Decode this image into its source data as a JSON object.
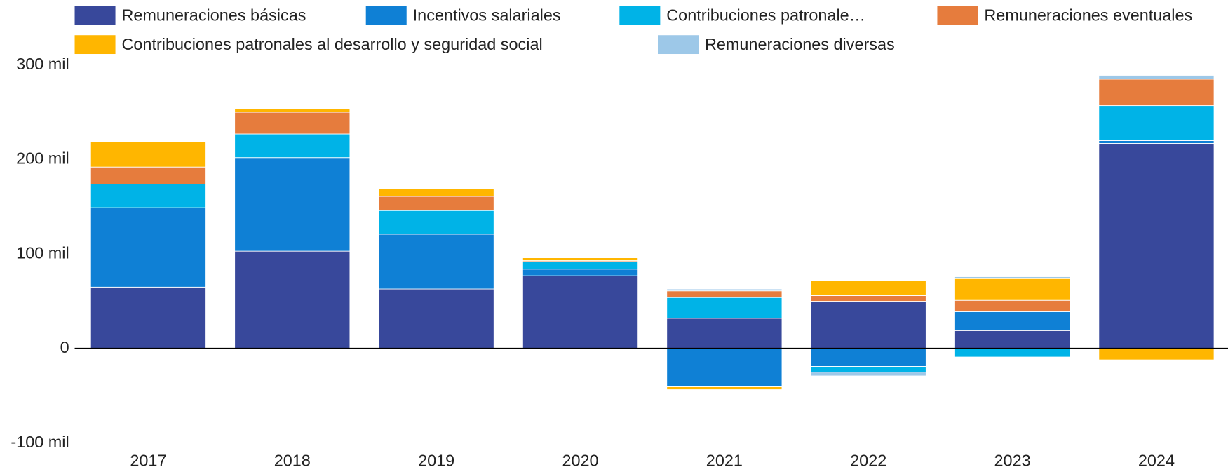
{
  "chart_data": {
    "type": "stacked_bar",
    "categories": [
      "2017",
      "2018",
      "2019",
      "2020",
      "2021",
      "2022",
      "2023",
      "2024"
    ],
    "series": [
      {
        "name": "Remuneraciones básicas",
        "color": "#38489b",
        "values": [
          65000,
          103000,
          63000,
          77000,
          32000,
          50000,
          19000,
          217000
        ]
      },
      {
        "name": "Incentivos salariales",
        "color": "#0f80d5",
        "values": [
          84000,
          99000,
          58000,
          7000,
          -40500,
          -19000,
          20000,
          3000
        ]
      },
      {
        "name": "Contribuciones patronale…",
        "color": "#00b3e7",
        "values": [
          25000,
          25000,
          25000,
          8000,
          22000,
          -6000,
          -9000,
          37000
        ]
      },
      {
        "name": "Remuneraciones eventuales",
        "color": "#e67c3d",
        "values": [
          18000,
          23000,
          15000,
          1000,
          7000,
          6000,
          12000,
          28000
        ]
      },
      {
        "name": "Contribuciones patronales al desarrollo y seguridad social",
        "color": "#ffb600",
        "values": [
          27000,
          4000,
          8000,
          3000,
          -3000,
          16000,
          23000,
          -12000
        ]
      },
      {
        "name": "Remuneraciones diversas",
        "color": "#9dc8e8",
        "values": [
          0,
          0,
          0,
          0,
          2000,
          -4000,
          2000,
          4000
        ]
      }
    ],
    "ylim": [
      -100000,
      300000
    ],
    "yticks": [
      {
        "value": -100000,
        "label": "-100 mil"
      },
      {
        "value": 0,
        "label": "0"
      },
      {
        "value": 100000,
        "label": "100 mil"
      },
      {
        "value": 200000,
        "label": "200 mil"
      },
      {
        "value": 300000,
        "label": "300 mil"
      }
    ],
    "grid": false,
    "legend": "top"
  }
}
